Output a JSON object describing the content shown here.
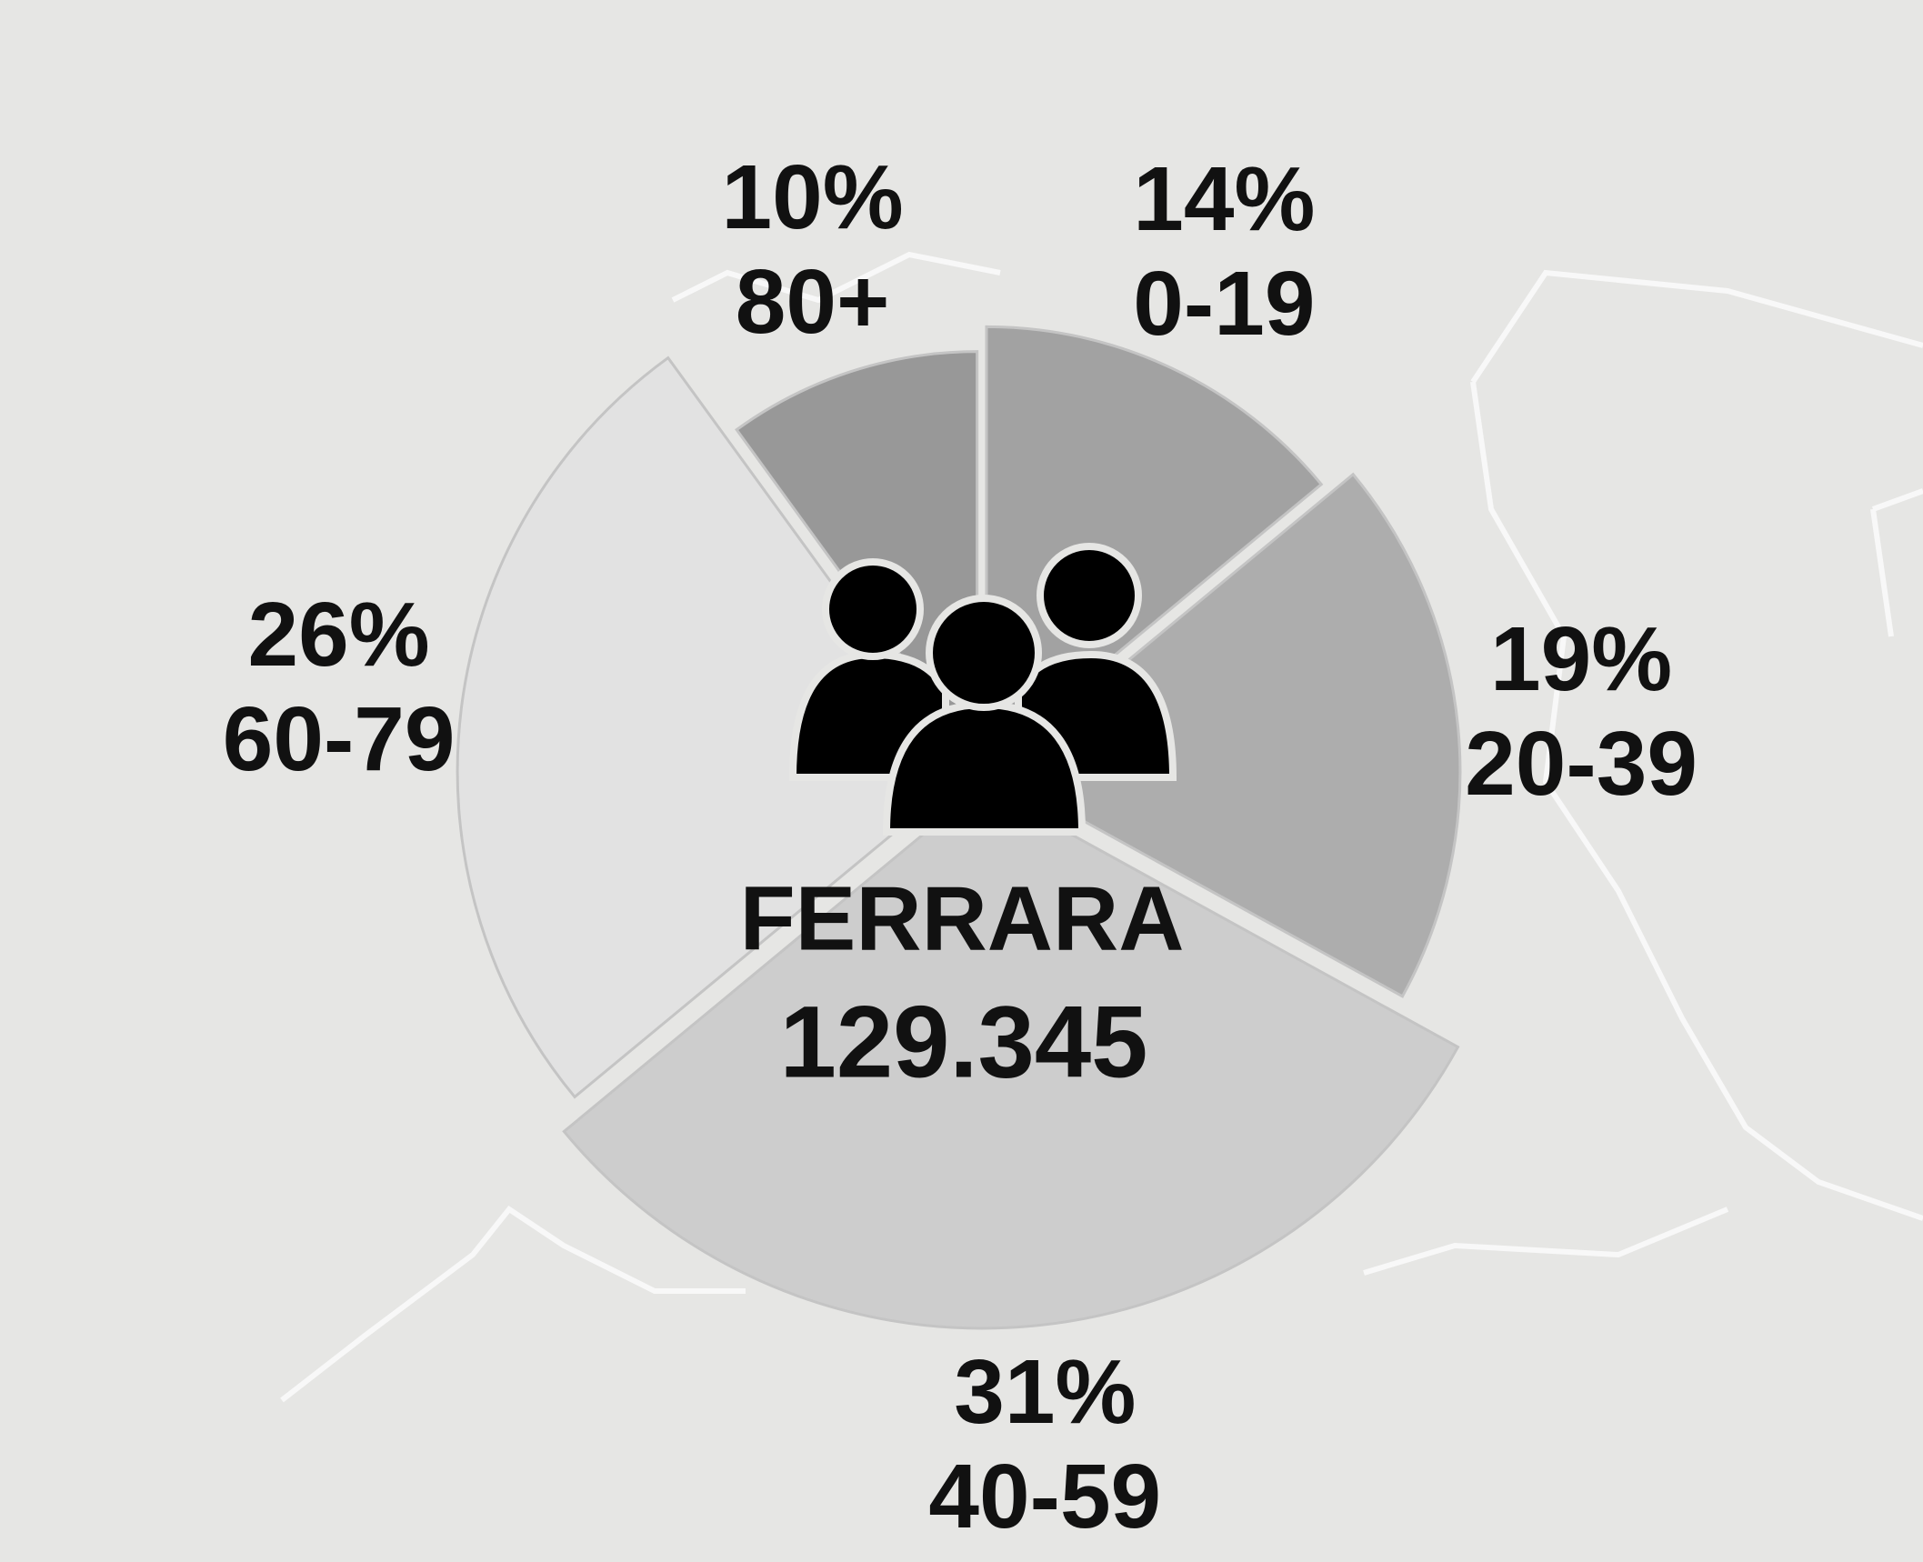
{
  "chart_data": {
    "type": "pie",
    "categories": [
      "0-19",
      "20-39",
      "40-59",
      "60-79",
      "80+"
    ],
    "values": [
      14,
      19,
      31,
      26,
      10
    ],
    "value_labels": [
      "14%",
      "19%",
      "31%",
      "26%",
      "10%"
    ],
    "colors": [
      "#a2a2a2",
      "#adadad",
      "#cdcdcd",
      "#e2e2e2",
      "#989898"
    ],
    "center_title": "FERRARA",
    "center_value": "129.345"
  }
}
